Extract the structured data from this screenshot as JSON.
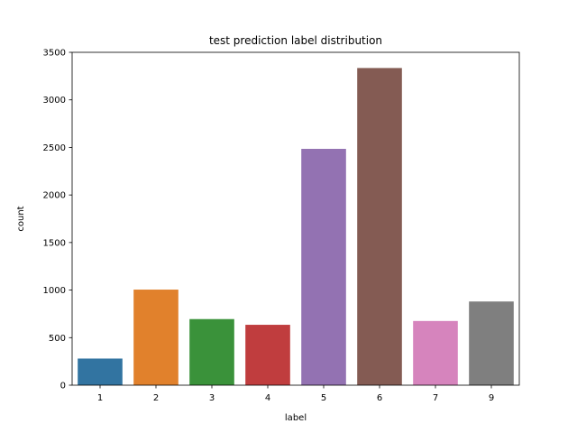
{
  "chart_data": {
    "type": "bar",
    "title": "test prediction label distribution",
    "xlabel": "label",
    "ylabel": "count",
    "categories": [
      "1",
      "2",
      "3",
      "4",
      "5",
      "6",
      "7",
      "9"
    ],
    "values": [
      280,
      1005,
      695,
      635,
      2485,
      3335,
      675,
      880
    ],
    "colors": [
      "#3274a1",
      "#e1812c",
      "#3a923a",
      "#c03d3e",
      "#9372b2",
      "#845b53",
      "#d684bd",
      "#7f7f7f"
    ],
    "ylim": [
      0,
      3500
    ],
    "yticks": [
      0,
      500,
      1000,
      1500,
      2000,
      2500,
      3000,
      3500
    ],
    "yticklabels": [
      "0",
      "500",
      "1000",
      "1500",
      "2000",
      "2500",
      "3000",
      "3500"
    ],
    "grid": false,
    "legend": "none"
  }
}
